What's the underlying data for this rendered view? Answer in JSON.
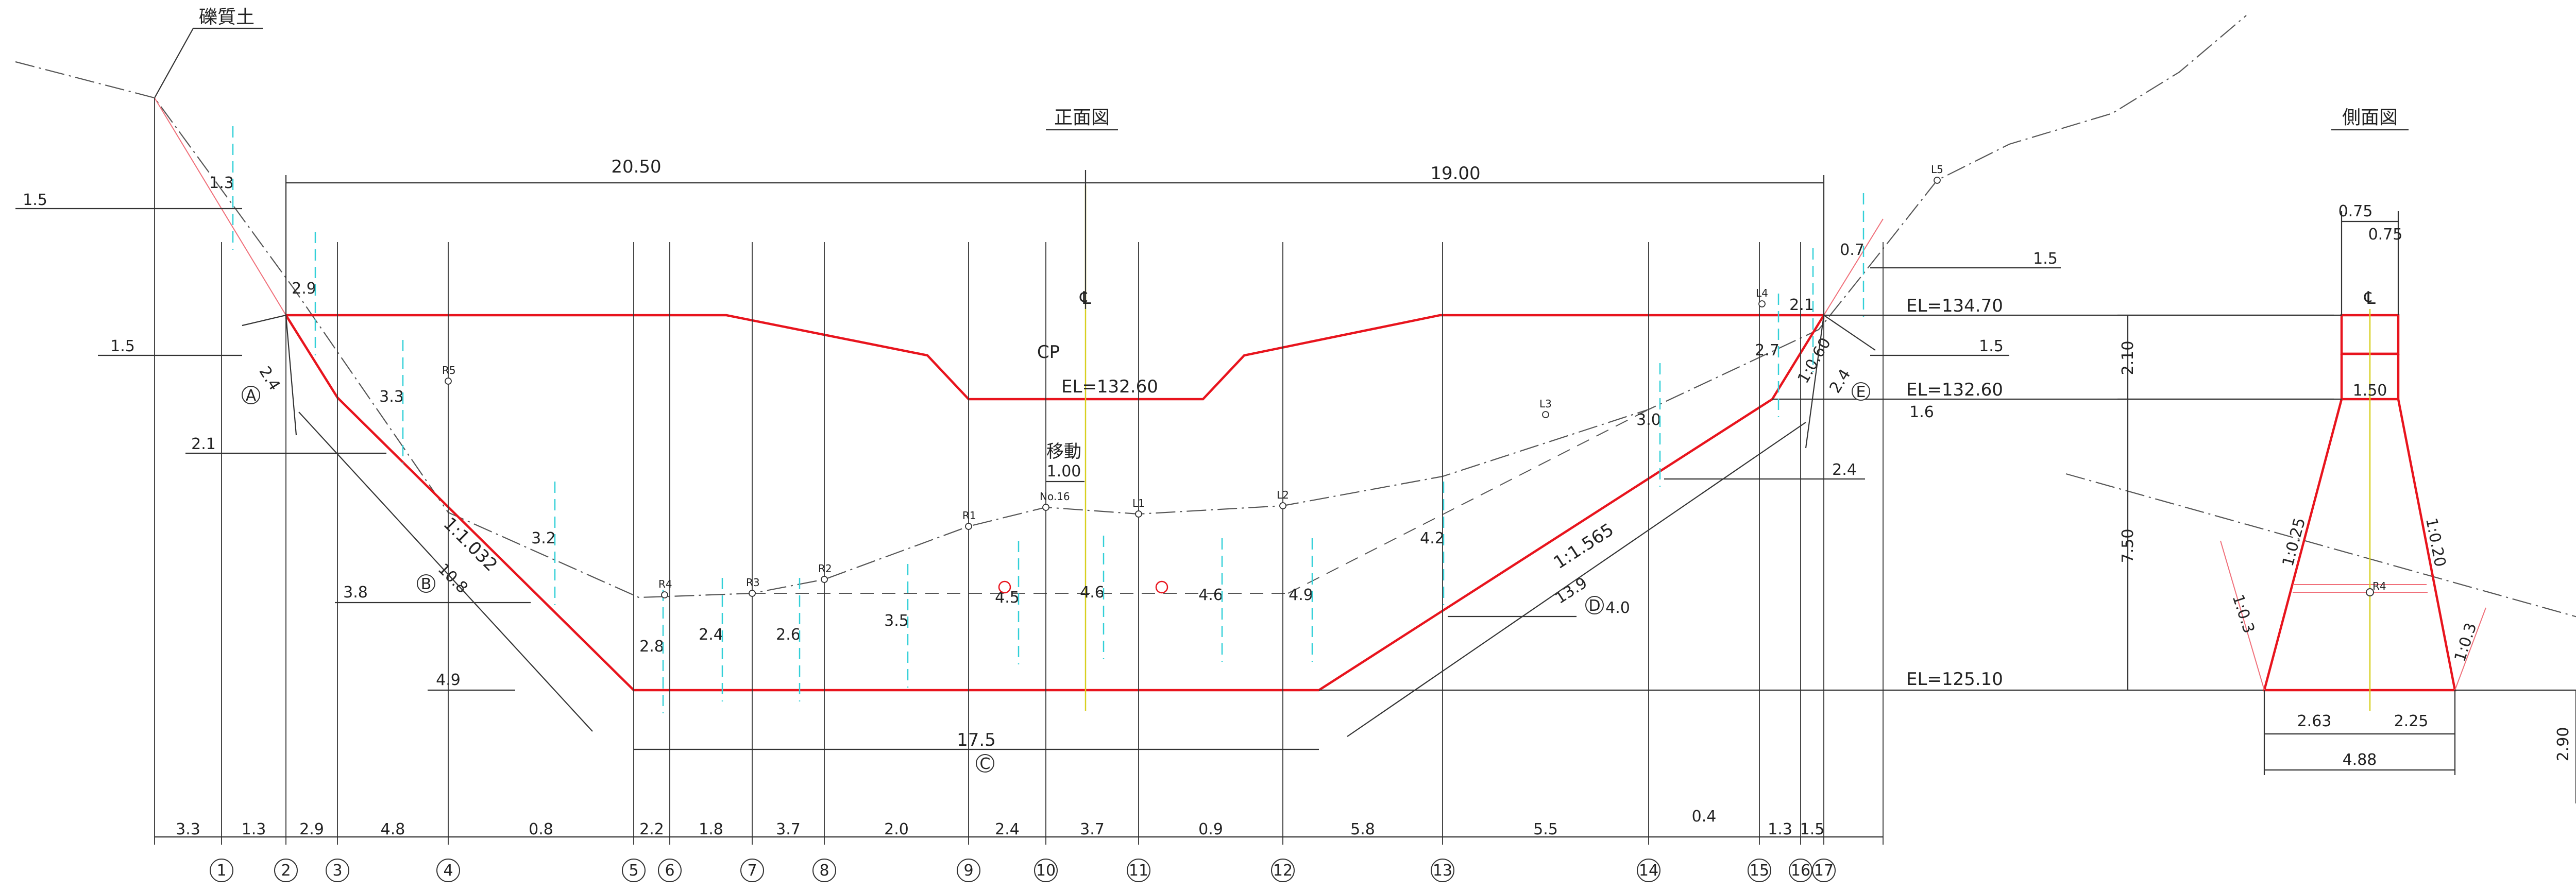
{
  "titles": {
    "front": "正面図",
    "side": "側面図"
  },
  "soil_label": "礫質土",
  "centerline_symbol": "℄",
  "cp": {
    "label": "CP",
    "move_label": "移動",
    "move_value": "1.00"
  },
  "elevations": {
    "crest_front": "EL=132.60",
    "top": "EL=134.70",
    "notch": "EL=132.60",
    "base": "EL=125.10"
  },
  "top_dims": {
    "left": "20.50",
    "right": "19.00"
  },
  "slopes": {
    "left": "1:1.032",
    "right": "1:1.565",
    "right_top": "1:0.60"
  },
  "side_labels": {
    "a": "A",
    "b": "B",
    "c": "C",
    "d": "D",
    "e": "E"
  },
  "side_lengths": {
    "a": "2.4",
    "b": "10.8",
    "c": "17.5",
    "d": "13.9",
    "e": "2.4"
  },
  "offsets": [
    "1.5",
    "1.5",
    "2.1",
    "3.8",
    "4.9",
    "1.5",
    "1.5",
    "1.6",
    "2.4",
    "4.0"
  ],
  "depths": [
    "1.3",
    "2.9",
    "3.3",
    "3.2",
    "2.8",
    "2.4",
    "2.6",
    "3.5",
    "4.5",
    "4.6",
    "4.6",
    "4.9",
    "4.2",
    "3.0",
    "2.7",
    "2.1",
    "0.7"
  ],
  "points": [
    "R5",
    "R4",
    "R3",
    "R2",
    "R1",
    "No.16",
    "L1",
    "L2",
    "L3",
    "L4",
    "L5"
  ],
  "bottom_dims": [
    "3.3",
    "1.3",
    "2.9",
    "4.8",
    "0.8",
    "2.2",
    "1.8",
    "3.7",
    "2.0",
    "2.4",
    "3.7",
    "0.9",
    "5.8",
    "5.5",
    "0.4",
    "1.3",
    "1.5"
  ],
  "station_numbers": [
    "1",
    "2",
    "3",
    "4",
    "5",
    "6",
    "7",
    "8",
    "9",
    "10",
    "11",
    "12",
    "13",
    "14",
    "15",
    "16",
    "17"
  ],
  "side_view": {
    "top_width_outer": "0.75",
    "top_width_inner": "0.75",
    "height_top": "2.10",
    "height_main": "7.50",
    "inner_width": "1.50",
    "slope_left_inner": "1:0.25",
    "slope_right_inner": "1:0.20",
    "slope_left_outer": "1:0.3",
    "slope_right_outer": "1:0.3",
    "point": "R4",
    "base_left": "2.63",
    "base_right": "2.25",
    "base_total": "4.88",
    "depth": "2.90"
  }
}
